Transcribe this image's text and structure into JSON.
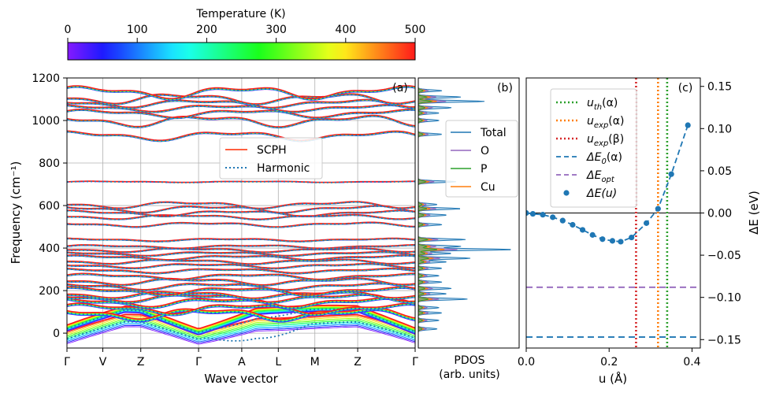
{
  "chart_data": {
    "type": "composite-phonon-figure",
    "colorbar": {
      "title": "Temperature (K)",
      "min": 0,
      "max": 500,
      "ticks": [
        "0",
        "100",
        "200",
        "300",
        "400",
        "500"
      ],
      "colormap": "rainbow"
    },
    "panel_a": {
      "letter": "(a)",
      "type": "line",
      "ylabel": "Frequency (cm⁻¹)",
      "xlabel": "Wave vector",
      "ylim": [
        -70,
        1200
      ],
      "yticks": [
        "0",
        "200",
        "400",
        "600",
        "800",
        "1000",
        "1200"
      ],
      "kpoints": [
        "Γ",
        "V",
        "Z",
        "Γ",
        "A",
        "L",
        "M",
        "Z",
        "Γ"
      ],
      "kpos": [
        0,
        0.103,
        0.212,
        0.378,
        0.502,
        0.607,
        0.712,
        0.835,
        1.0
      ],
      "legend": [
        {
          "label": "SCPH",
          "style": "solid",
          "color": "#ff2a00"
        },
        {
          "label": "Harmonic",
          "style": "dotted",
          "color": "#1f77b4"
        }
      ],
      "bands": [
        {
          "base": 8,
          "amp": 50,
          "ph": 0.0,
          "sag": 58
        },
        {
          "base": 30,
          "amp": 65,
          "ph": 1.0,
          "sag": 30
        },
        {
          "base": 95,
          "amp": 20,
          "ph": 2.0,
          "sag": 14
        },
        {
          "base": 118,
          "amp": 18,
          "ph": 0.5,
          "sag": 10
        },
        {
          "base": 148,
          "amp": 16,
          "ph": 1.5,
          "sag": 10
        },
        {
          "base": 168,
          "amp": 14,
          "ph": 2.5,
          "sag": 8
        },
        {
          "base": 183,
          "amp": 12,
          "ph": 3.2,
          "sag": 8
        },
        {
          "base": 200,
          "amp": 14,
          "ph": 0.8,
          "sag": 8
        },
        {
          "base": 222,
          "amp": 12,
          "ph": 1.8,
          "sag": 6
        },
        {
          "base": 245,
          "amp": 12,
          "ph": 2.8,
          "sag": 6
        },
        {
          "base": 268,
          "amp": 10,
          "ph": 0.3,
          "sag": 6
        },
        {
          "base": 295,
          "amp": 8,
          "ph": 1.3,
          "sag": 5
        },
        {
          "base": 318,
          "amp": 8,
          "ph": 2.3,
          "sag": 5
        },
        {
          "base": 338,
          "amp": 8,
          "ph": 3.3,
          "sag": 5
        },
        {
          "base": 357,
          "amp": 8,
          "ph": 0.7,
          "sag": 5
        },
        {
          "base": 375,
          "amp": 7,
          "ph": 1.7,
          "sag": 5
        },
        {
          "base": 392,
          "amp": 7,
          "ph": 2.7,
          "sag": 4
        },
        {
          "base": 408,
          "amp": 6,
          "ph": 0.2,
          "sag": 4
        },
        {
          "base": 440,
          "amp": 5,
          "ph": 1.2,
          "sag": 4
        },
        {
          "base": 512,
          "amp": 8,
          "ph": 2.2,
          "sag": 4
        },
        {
          "base": 548,
          "amp": 8,
          "ph": 3.0,
          "sag": 4
        },
        {
          "base": 565,
          "amp": 10,
          "ph": 0.9,
          "sag": 4
        },
        {
          "base": 585,
          "amp": 12,
          "ph": 1.9,
          "sag": 4
        },
        {
          "base": 605,
          "amp": 12,
          "ph": 2.9,
          "sag": 4
        },
        {
          "base": 712,
          "amp": 2,
          "ph": 0.0,
          "sag": 2
        },
        {
          "base": 930,
          "amp": 16,
          "ph": 1.1,
          "sag": 6
        },
        {
          "base": 1000,
          "amp": 20,
          "ph": 2.1,
          "sag": 6
        },
        {
          "base": 1035,
          "amp": 14,
          "ph": 0.4,
          "sag": 6
        },
        {
          "base": 1060,
          "amp": 12,
          "ph": 1.4,
          "sag": 6
        },
        {
          "base": 1082,
          "amp": 14,
          "ph": 2.4,
          "sag": 6
        },
        {
          "base": 1105,
          "amp": 18,
          "ph": 3.1,
          "sag": 6
        },
        {
          "base": 1135,
          "amp": 22,
          "ph": 0.6,
          "sag": 8
        }
      ]
    },
    "panel_b": {
      "letter": "(b)",
      "type": "area",
      "xlabel": "PDOS\n(arb. units)",
      "legend": [
        {
          "label": "Total",
          "color": "#1f77b4"
        },
        {
          "label": "O",
          "color": "#9467bd"
        },
        {
          "label": "P",
          "color": "#2ca02c"
        },
        {
          "label": "Cu",
          "color": "#ff7f0e"
        }
      ],
      "peaks": [
        {
          "f": 20,
          "w": 0.2
        },
        {
          "f": 60,
          "w": 0.22
        },
        {
          "f": 95,
          "w": 0.25
        },
        {
          "f": 120,
          "w": 0.22
        },
        {
          "f": 160,
          "w": 0.52
        },
        {
          "f": 185,
          "w": 0.3
        },
        {
          "f": 210,
          "w": 0.35
        },
        {
          "f": 240,
          "w": 0.25
        },
        {
          "f": 270,
          "w": 0.22
        },
        {
          "f": 305,
          "w": 0.25
        },
        {
          "f": 335,
          "w": 0.3
        },
        {
          "f": 352,
          "w": 0.55
        },
        {
          "f": 375,
          "w": 0.35
        },
        {
          "f": 393,
          "w": 1.0
        },
        {
          "f": 408,
          "w": 0.45
        },
        {
          "f": 440,
          "w": 0.5
        },
        {
          "f": 510,
          "w": 0.25
        },
        {
          "f": 555,
          "w": 0.3
        },
        {
          "f": 585,
          "w": 0.45
        },
        {
          "f": 605,
          "w": 0.2
        },
        {
          "f": 712,
          "w": 0.4
        },
        {
          "f": 935,
          "w": 0.25
        },
        {
          "f": 1000,
          "w": 0.22
        },
        {
          "f": 1035,
          "w": 0.22
        },
        {
          "f": 1060,
          "w": 0.35
        },
        {
          "f": 1090,
          "w": 0.7
        },
        {
          "f": 1110,
          "w": 0.45
        },
        {
          "f": 1140,
          "w": 0.25
        }
      ]
    },
    "panel_c": {
      "letter": "(c)",
      "type": "line+scatter",
      "xlabel": "u (Å)",
      "ylabel": "ΔE (eV)",
      "xlim": [
        0,
        0.42
      ],
      "ylim": [
        -0.16,
        0.16
      ],
      "xticks": [
        "0.0",
        "0.2",
        "0.4"
      ],
      "xtick_vals": [
        0.0,
        0.2,
        0.4
      ],
      "yticks": [
        "0.15",
        "0.10",
        "0.05",
        "0.00",
        "−0.05",
        "−0.10",
        "−0.15"
      ],
      "ytick_vals": [
        0.15,
        0.1,
        0.05,
        0.0,
        -0.05,
        -0.1,
        -0.15
      ],
      "vlines": [
        {
          "label": "u_th(α)",
          "sym": "u",
          "sub": "th",
          "arg": "(α)",
          "x": 0.34,
          "color": "#2ca02c"
        },
        {
          "label": "u_exp(α)",
          "sym": "u",
          "sub": "exp",
          "arg": "(α)",
          "x": 0.318,
          "color": "#ff7f0e"
        },
        {
          "label": "u_exp(β)",
          "sym": "u",
          "sub": "exp",
          "arg": "(β)",
          "x": 0.265,
          "color": "#d62728"
        }
      ],
      "hlines": [
        {
          "label": "ΔE_0(α)",
          "sym": "ΔE",
          "sub": "0",
          "arg": "(α)",
          "y": -0.147,
          "color": "#1f77b4"
        },
        {
          "label": "ΔE_opt",
          "sym": "ΔE",
          "sub": "opt",
          "arg": "",
          "y": -0.088,
          "color": "#9467bd"
        }
      ],
      "series_label": "ΔE(u)",
      "series_color": "#1f77b4",
      "points": [
        [
          0.0,
          0.0
        ],
        [
          0.016,
          -0.001
        ],
        [
          0.04,
          -0.002
        ],
        [
          0.064,
          -0.005
        ],
        [
          0.088,
          -0.009
        ],
        [
          0.112,
          -0.014
        ],
        [
          0.136,
          -0.02
        ],
        [
          0.16,
          -0.026
        ],
        [
          0.184,
          -0.031
        ],
        [
          0.208,
          -0.033
        ],
        [
          0.228,
          -0.034
        ],
        [
          0.254,
          -0.029
        ],
        [
          0.29,
          -0.012
        ],
        [
          0.318,
          0.005
        ],
        [
          0.35,
          0.046
        ],
        [
          0.39,
          0.104
        ]
      ]
    }
  }
}
